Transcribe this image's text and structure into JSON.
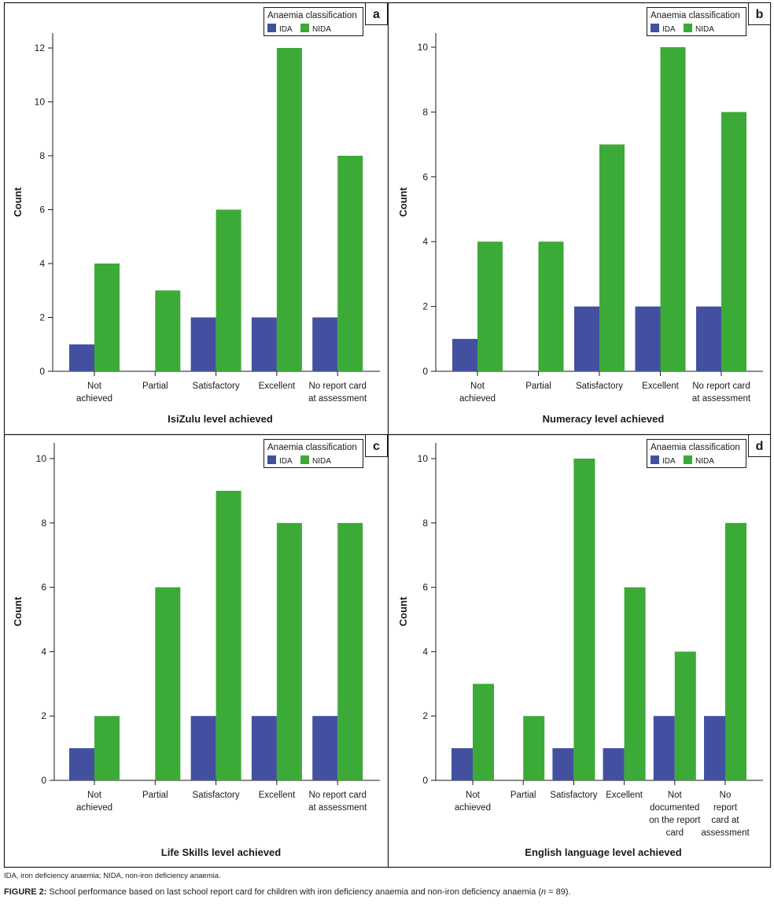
{
  "legend": {
    "title": "Anaemia classification",
    "series": [
      {
        "name": "IDA",
        "color": "#4350a0"
      },
      {
        "name": "NIDA",
        "color": "#3caa37"
      }
    ]
  },
  "caption": {
    "note": "IDA, iron deficiency anaemia; NIDA, non-iron deficiency anaemia.",
    "label": "FIGURE 2:",
    "text": "School performance based on last school report card for children with iron deficiency anaemia and non-iron deficiency anaemia (",
    "n_symbol": "n",
    "n_value": " = 89)."
  },
  "chart_data": [
    {
      "type": "bar",
      "panel_label": "a",
      "title": "",
      "xlabel": "IsiZulu level achieved",
      "ylabel": "Count",
      "ylim": [
        0,
        12.5
      ],
      "yticks": [
        0,
        2,
        4,
        6,
        8,
        10,
        12
      ],
      "grid": false,
      "legend_position": "top-right",
      "categories": [
        [
          "Not",
          "achieved"
        ],
        [
          "Partial"
        ],
        [
          "Satisfactory"
        ],
        [
          "Excellent"
        ],
        [
          "No report card",
          "at assessment"
        ]
      ],
      "series": [
        {
          "name": "IDA",
          "values": [
            1,
            0,
            2,
            2,
            2
          ]
        },
        {
          "name": "NIDA",
          "values": [
            4,
            3,
            6,
            12,
            8
          ]
        }
      ]
    },
    {
      "type": "bar",
      "panel_label": "b",
      "title": "",
      "xlabel": "Numeracy level achieved",
      "ylabel": "Count",
      "ylim": [
        0,
        10.4
      ],
      "yticks": [
        0,
        2,
        4,
        6,
        8,
        10
      ],
      "grid": false,
      "legend_position": "top-right",
      "categories": [
        [
          "Not",
          "achieved"
        ],
        [
          "Partial"
        ],
        [
          "Satisfactory"
        ],
        [
          "Excellent"
        ],
        [
          "No report card",
          "at assessment"
        ]
      ],
      "series": [
        {
          "name": "IDA",
          "values": [
            1,
            0,
            2,
            2,
            2
          ]
        },
        {
          "name": "NIDA",
          "values": [
            4,
            4,
            7,
            10,
            8
          ]
        }
      ]
    },
    {
      "type": "bar",
      "panel_label": "c",
      "title": "",
      "xlabel": "Life Skills level achieved",
      "ylabel": "Count",
      "ylim": [
        0,
        10.5
      ],
      "yticks": [
        0,
        2,
        4,
        6,
        8,
        10
      ],
      "grid": false,
      "legend_position": "top-right",
      "categories": [
        [
          "Not",
          "achieved"
        ],
        [
          "Partial"
        ],
        [
          "Satisfactory"
        ],
        [
          "Excellent"
        ],
        [
          "No report card",
          "at assessment"
        ]
      ],
      "series": [
        {
          "name": "IDA",
          "values": [
            1,
            0,
            2,
            2,
            2
          ]
        },
        {
          "name": "NIDA",
          "values": [
            2,
            6,
            9,
            8,
            8
          ]
        }
      ]
    },
    {
      "type": "bar",
      "panel_label": "d",
      "title": "",
      "xlabel": "English language level achieved",
      "ylabel": "Count",
      "ylim": [
        0,
        10.5
      ],
      "yticks": [
        0,
        2,
        4,
        6,
        8,
        10
      ],
      "grid": false,
      "legend_position": "top-right",
      "categories": [
        [
          "Not",
          "achieved"
        ],
        [
          "Partial"
        ],
        [
          "Satisfactory"
        ],
        [
          "Excellent"
        ],
        [
          "Not",
          "documented",
          "on the report",
          "card"
        ],
        [
          "No",
          "report",
          "card at",
          "assessment"
        ]
      ],
      "series": [
        {
          "name": "IDA",
          "values": [
            1,
            0,
            1,
            1,
            2,
            2
          ]
        },
        {
          "name": "NIDA",
          "values": [
            3,
            2,
            10,
            6,
            4,
            8
          ]
        }
      ]
    }
  ]
}
